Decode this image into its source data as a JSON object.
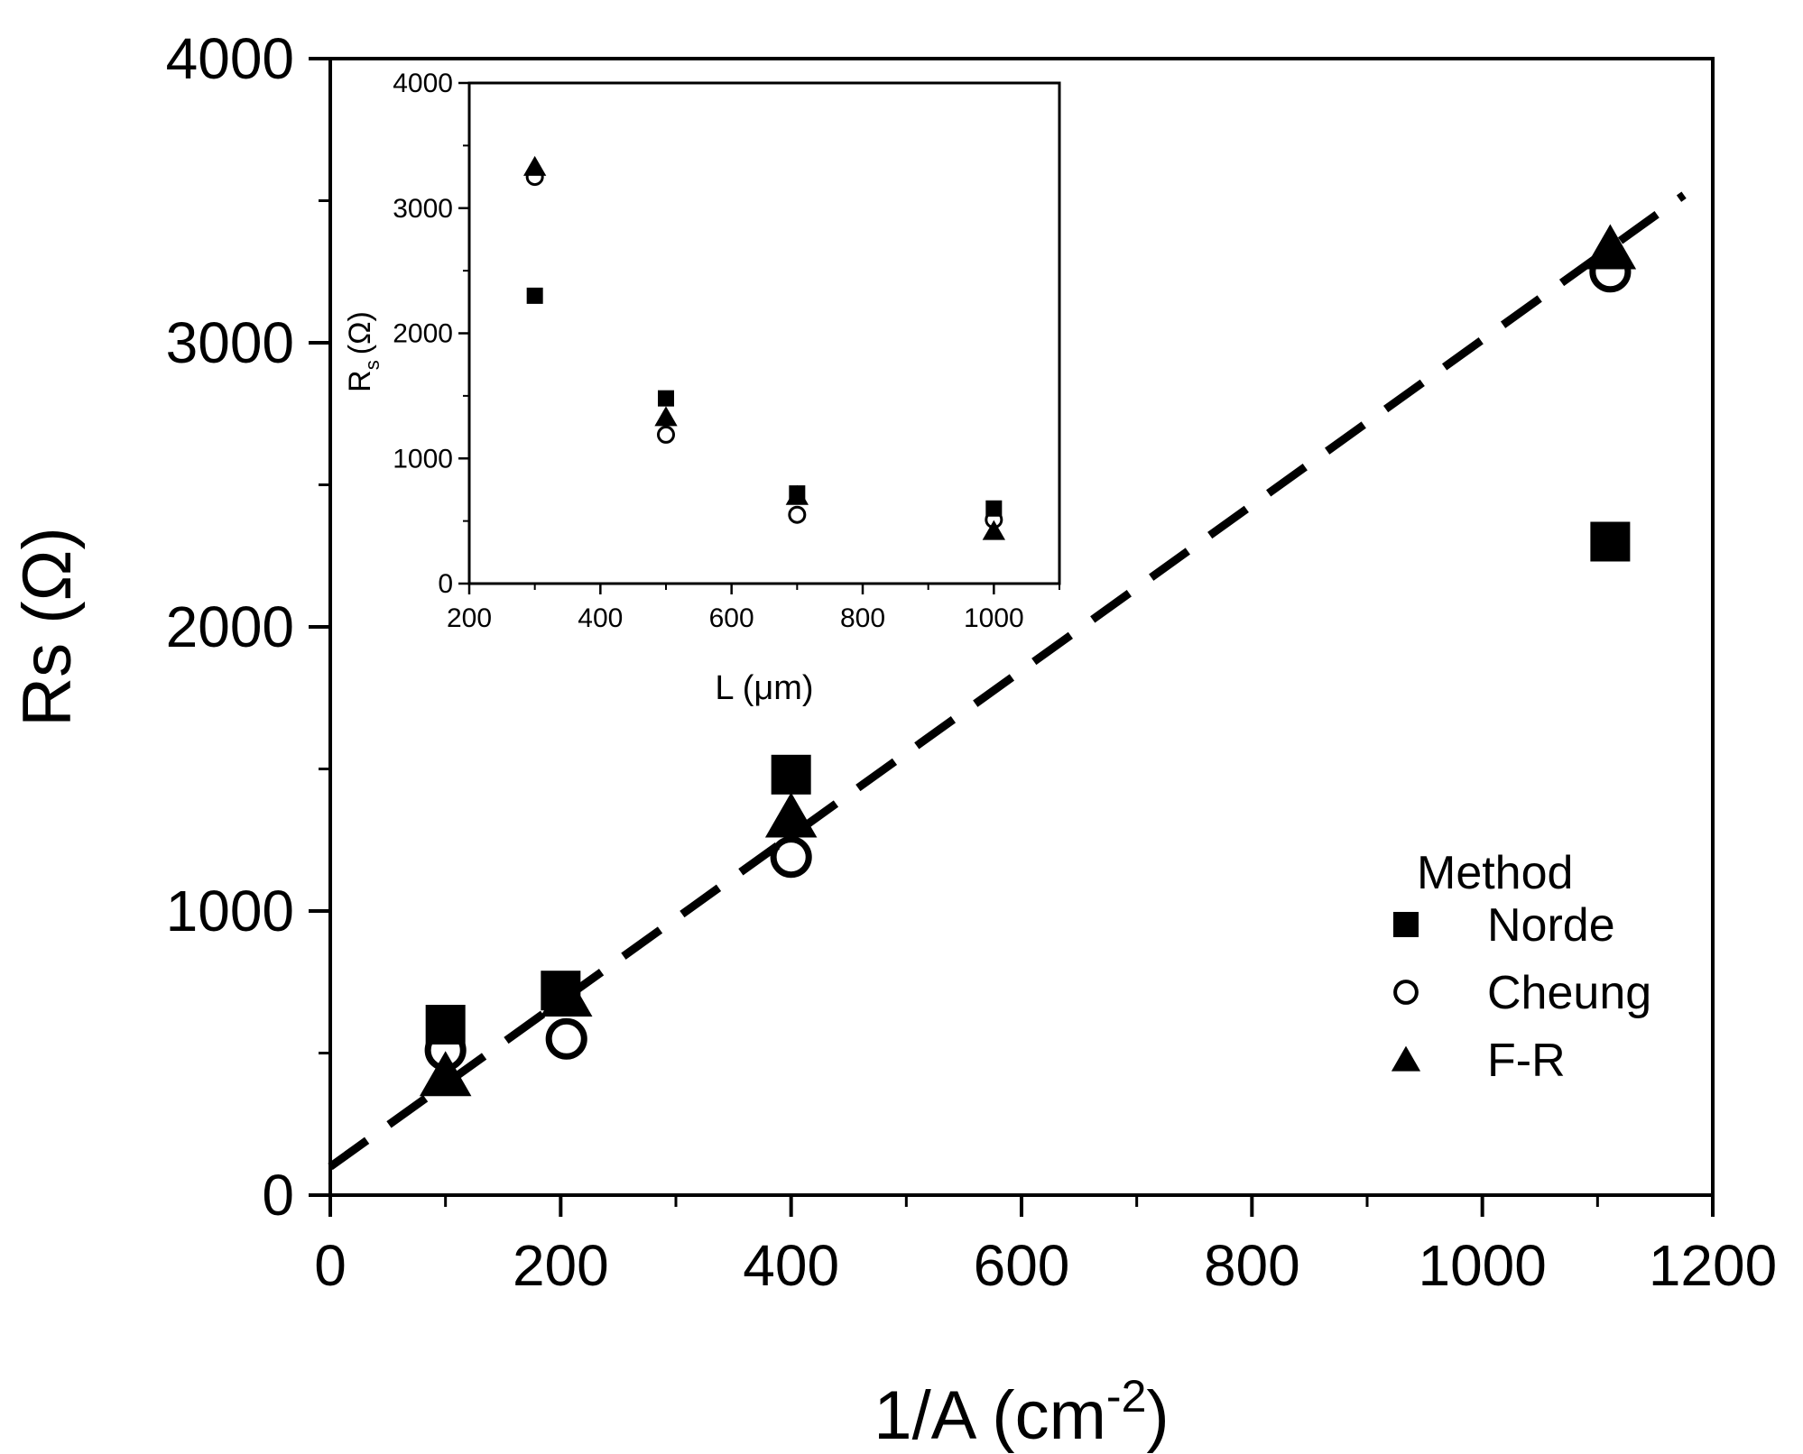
{
  "chart_data": [
    {
      "id": "main",
      "type": "scatter",
      "xlabel": "1/A (cm",
      "xlabel_sup": "-2",
      "xlabel_close": ")",
      "ylabel": "Rs (Ω)",
      "xlim": [
        0,
        1200
      ],
      "ylim": [
        0,
        4000
      ],
      "xticks": [
        "0",
        "200",
        "400",
        "600",
        "800",
        "1000",
        "1200"
      ],
      "yticks": [
        "0",
        "1000",
        "2000",
        "3000",
        "4000"
      ],
      "xtick_values": [
        0,
        200,
        400,
        600,
        800,
        1000,
        1200
      ],
      "ytick_values": [
        0,
        1000,
        2000,
        3000,
        4000
      ],
      "series": [
        {
          "name": "Norde",
          "marker": "filled-square",
          "x": [
            100,
            200,
            400,
            1111
          ],
          "y": [
            600,
            720,
            1480,
            2300
          ]
        },
        {
          "name": "Cheung",
          "marker": "open-circle",
          "x": [
            100,
            205,
            400,
            1111
          ],
          "y": [
            510,
            550,
            1190,
            3250
          ]
        },
        {
          "name": "F-R",
          "marker": "filled-triangle",
          "x": [
            100,
            205,
            400,
            1111
          ],
          "y": [
            420,
            700,
            1330,
            3330
          ]
        }
      ],
      "fit_line": {
        "style": "dashed",
        "x": [
          0,
          1175
        ],
        "y": [
          100,
          3520
        ]
      },
      "legend": {
        "title": "Method",
        "entries": [
          "Norde",
          "Cheung",
          "F-R"
        ],
        "placement": "bottom-right"
      }
    },
    {
      "id": "inset",
      "type": "scatter",
      "xlabel": "L (μm)",
      "ylabel_main": "R",
      "ylabel_sub": "s",
      "ylabel_unit": "(Ω)",
      "xlim": [
        200,
        1100
      ],
      "ylim": [
        0,
        4000
      ],
      "xticks": [
        "200",
        "400",
        "600",
        "800",
        "1000"
      ],
      "yticks": [
        "0",
        "1000",
        "2000",
        "3000",
        "4000"
      ],
      "xtick_values": [
        200,
        400,
        600,
        800,
        1000
      ],
      "ytick_values": [
        0,
        1000,
        2000,
        3000,
        4000
      ],
      "series": [
        {
          "name": "Norde",
          "marker": "filled-square",
          "x": [
            300,
            500,
            700,
            1000
          ],
          "y": [
            2300,
            1480,
            720,
            600
          ]
        },
        {
          "name": "Cheung",
          "marker": "open-circle",
          "x": [
            300,
            500,
            700,
            1000
          ],
          "y": [
            3250,
            1190,
            550,
            510
          ]
        },
        {
          "name": "F-R",
          "marker": "filled-triangle",
          "x": [
            300,
            500,
            700,
            1000
          ],
          "y": [
            3330,
            1330,
            700,
            420
          ]
        }
      ]
    }
  ]
}
